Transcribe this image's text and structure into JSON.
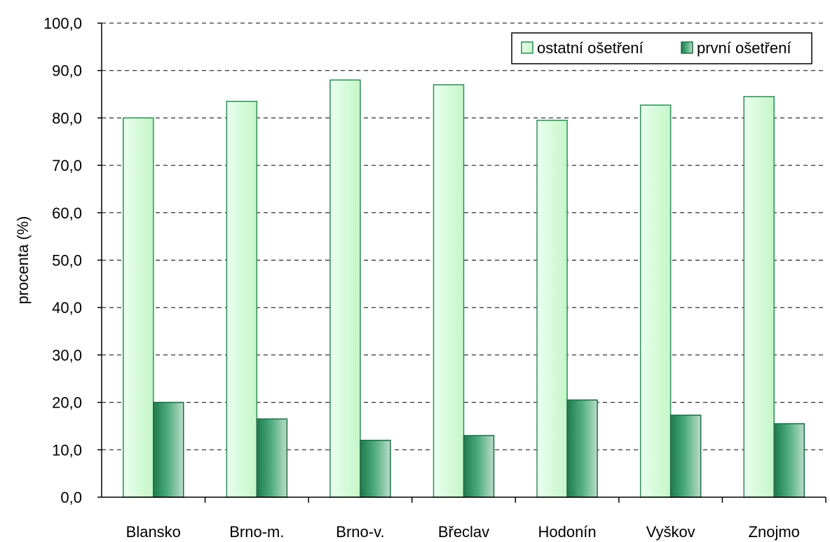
{
  "chart_data": {
    "type": "bar",
    "title": "",
    "xlabel": "",
    "ylabel": "procenta (%)",
    "ylim": [
      0,
      100
    ],
    "ytick_step": 10,
    "ytick_labels": [
      "0,0",
      "10,0",
      "20,0",
      "30,0",
      "40,0",
      "50,0",
      "60,0",
      "70,0",
      "80,0",
      "90,0",
      "100,0"
    ],
    "grid": "horizontal dashed",
    "legend_position": "top-right",
    "categories": [
      "Blansko",
      "Brno-m.",
      "Brno-v.",
      "Břeclav",
      "Hodonín",
      "Vyškov",
      "Znojmo"
    ],
    "series": [
      {
        "name": "ostatní ošetření",
        "values": [
          80.0,
          83.5,
          88.0,
          87.0,
          79.5,
          82.7,
          84.5
        ],
        "color": "#d9fbd9",
        "stroke": "#2e8b57"
      },
      {
        "name": "první ošetření",
        "values": [
          20.0,
          16.5,
          12.0,
          13.0,
          20.5,
          17.3,
          15.5
        ],
        "color": "#3c9a6e",
        "stroke": "#1f6b47"
      }
    ]
  }
}
